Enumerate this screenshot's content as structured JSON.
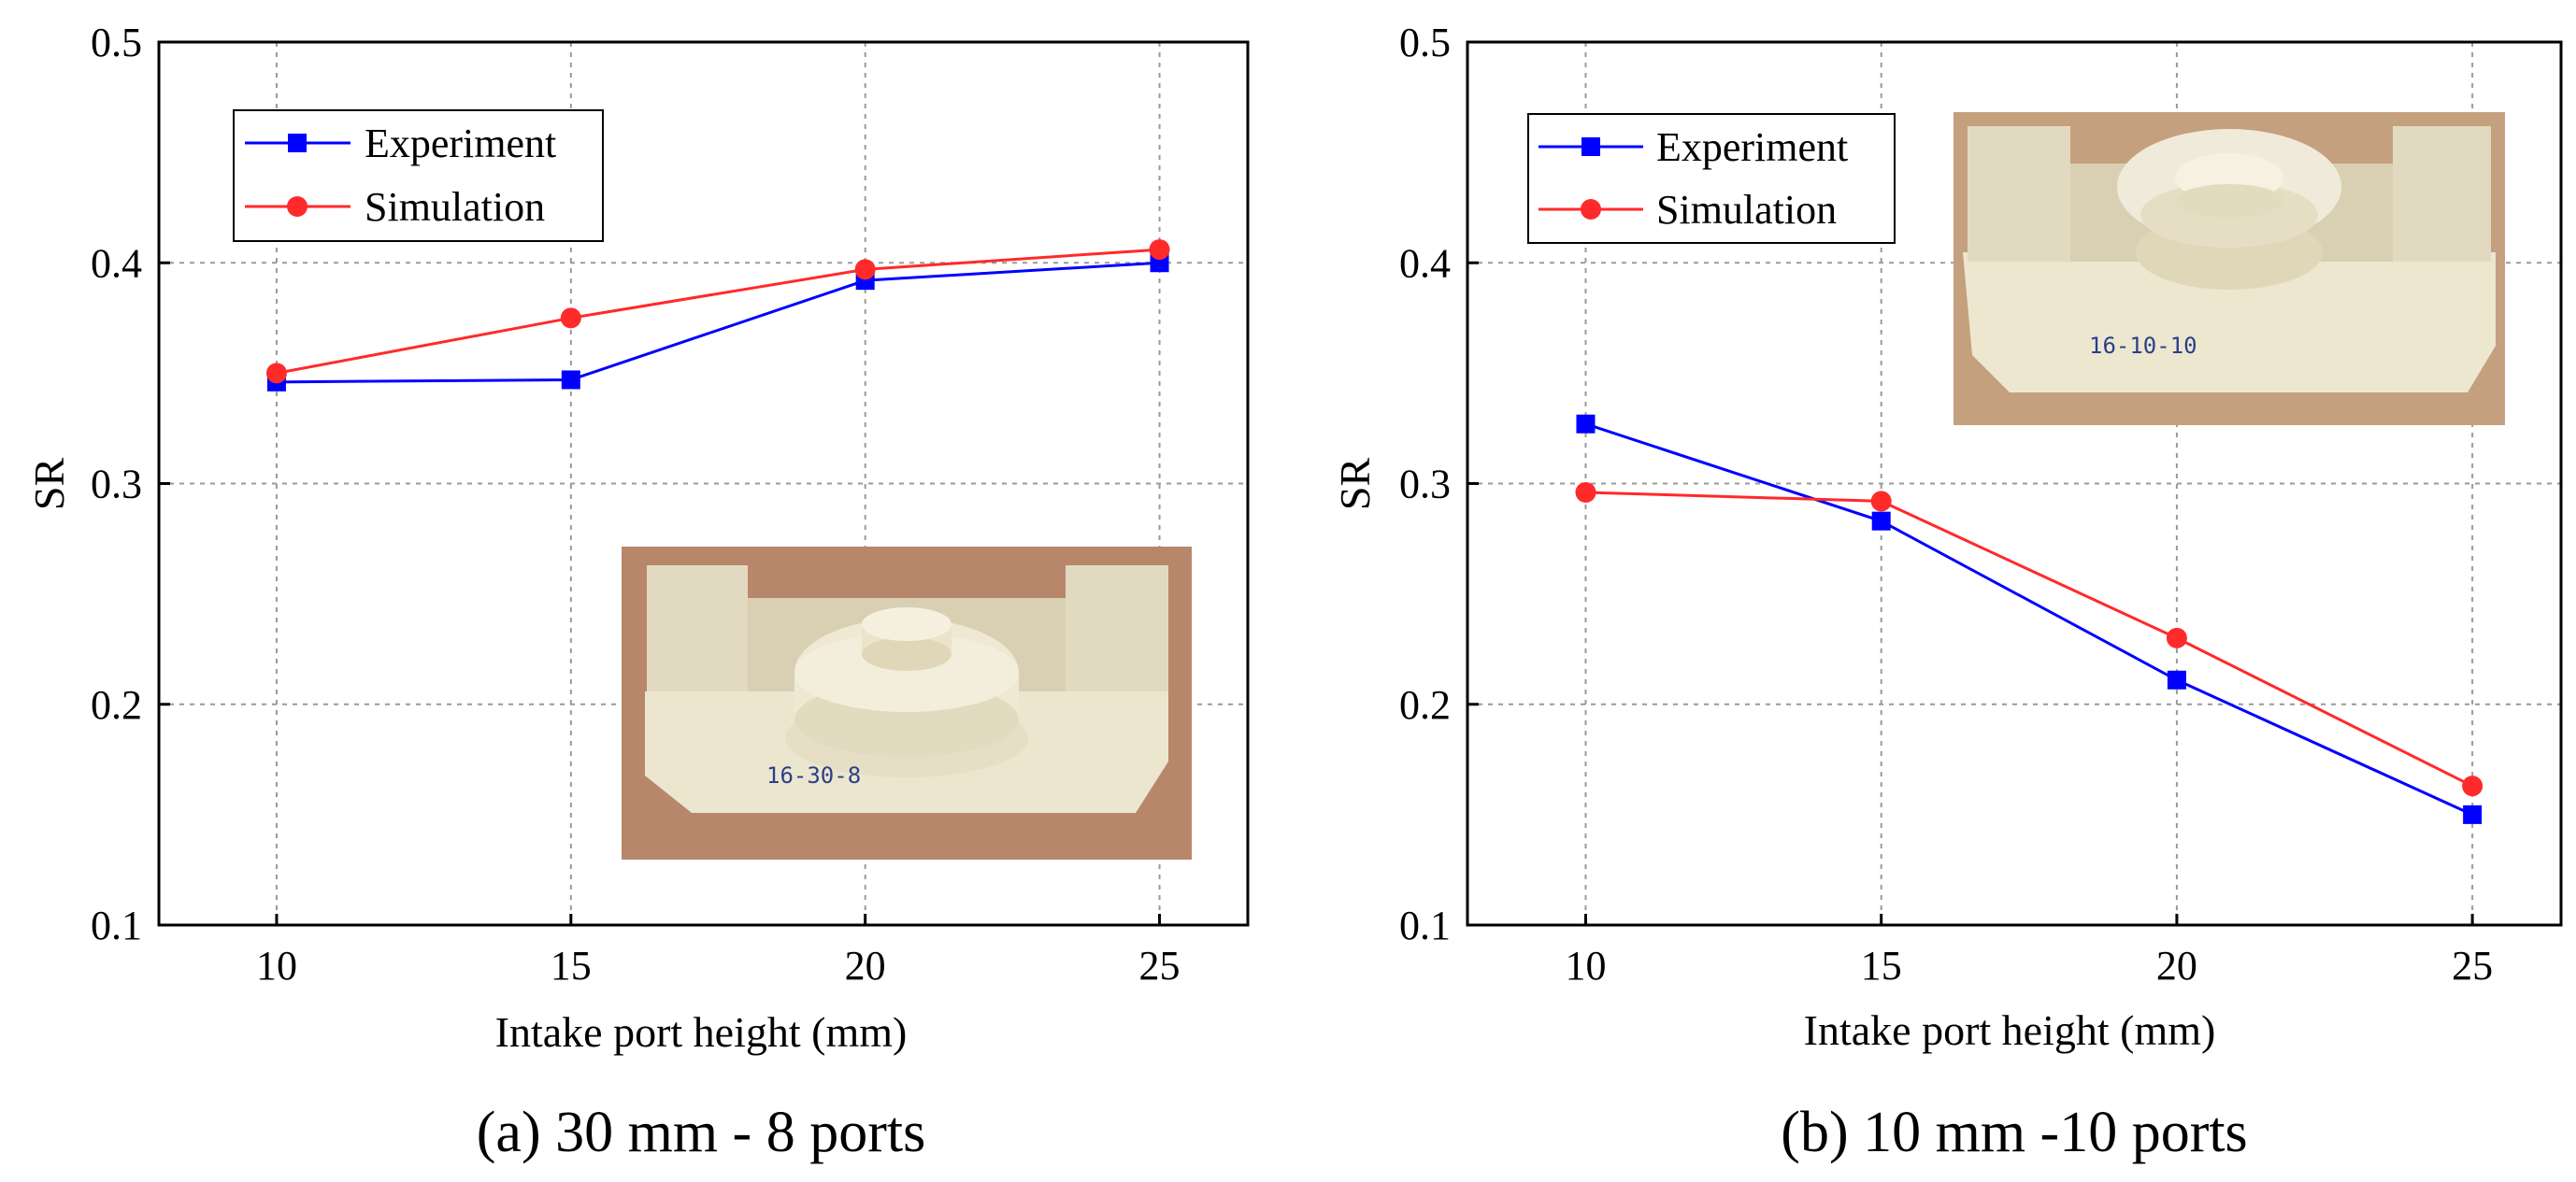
{
  "chart_data": [
    {
      "type": "line",
      "panel": "a",
      "title": "",
      "caption": "(a) 30 mm - 8 ports",
      "xlabel": "Intake port height (mm)",
      "ylabel": "SR",
      "x": [
        10,
        15,
        20,
        25
      ],
      "xticks": [
        "10",
        "15",
        "20",
        "25"
      ],
      "xlim": [
        8.0,
        26.5
      ],
      "ylim": [
        0.1,
        0.5
      ],
      "yticks": [
        "0.1",
        "0.2",
        "0.3",
        "0.4",
        "0.5"
      ],
      "grid": true,
      "legend_position": "top-left",
      "inset_photo": "bottom-right",
      "inset_label": "16-30-8",
      "series": [
        {
          "name": "Experiment",
          "color": "#0000ff",
          "marker": "square",
          "values": [
            0.346,
            0.347,
            0.392,
            0.4
          ]
        },
        {
          "name": "Simulation",
          "color": "#ff2a2a",
          "marker": "circle",
          "values": [
            0.35,
            0.375,
            0.397,
            0.406
          ]
        }
      ]
    },
    {
      "type": "line",
      "panel": "b",
      "title": "",
      "caption": "(b) 10 mm -10 ports",
      "xlabel": "Intake port height (mm)",
      "ylabel": "SR",
      "x": [
        10,
        15,
        20,
        25
      ],
      "xticks": [
        "10",
        "15",
        "20",
        "25"
      ],
      "xlim": [
        8.0,
        26.5
      ],
      "ylim": [
        0.1,
        0.5
      ],
      "yticks": [
        "0.1",
        "0.2",
        "0.3",
        "0.4",
        "0.5"
      ],
      "grid": true,
      "legend_position": "top-left",
      "inset_photo": "top-right",
      "inset_label": "16-10-10",
      "series": [
        {
          "name": "Experiment",
          "color": "#0000ff",
          "marker": "square",
          "values": [
            0.327,
            0.283,
            0.211,
            0.15
          ]
        },
        {
          "name": "Simulation",
          "color": "#ff2a2a",
          "marker": "circle",
          "values": [
            0.296,
            0.292,
            0.23,
            0.163
          ]
        }
      ]
    }
  ]
}
